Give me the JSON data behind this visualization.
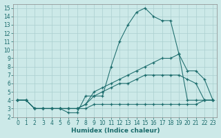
{
  "xlabel": "Humidex (Indice chaleur)",
  "xlim": [
    -0.5,
    23.5
  ],
  "ylim": [
    2,
    15.5
  ],
  "yticks": [
    2,
    3,
    4,
    5,
    6,
    7,
    8,
    9,
    10,
    11,
    12,
    13,
    14,
    15
  ],
  "xticks": [
    0,
    1,
    2,
    3,
    4,
    5,
    6,
    7,
    8,
    9,
    10,
    11,
    12,
    13,
    14,
    15,
    16,
    17,
    18,
    19,
    20,
    21,
    22,
    23
  ],
  "bg_color": "#cce9e8",
  "line_color": "#1a6b6b",
  "grid_color": "#aacfcf",
  "lines": [
    {
      "x": [
        0,
        1,
        2,
        3,
        4,
        5,
        6,
        7,
        8,
        9,
        10,
        11,
        12,
        13,
        14,
        15,
        16,
        17,
        18,
        19,
        20,
        21,
        22,
        23
      ],
      "y": [
        4,
        4,
        3,
        3,
        3,
        3,
        2.5,
        2.5,
        4.5,
        4.5,
        4.5,
        8,
        11,
        13,
        14.5,
        15,
        14,
        13.5,
        13.5,
        9.5,
        4,
        4,
        4,
        4
      ]
    },
    {
      "x": [
        0,
        1,
        2,
        3,
        4,
        5,
        6,
        7,
        8,
        9,
        10,
        11,
        12,
        13,
        14,
        15,
        16,
        17,
        18,
        19,
        20,
        21,
        22,
        23
      ],
      "y": [
        4,
        4,
        3,
        3,
        3,
        3,
        3,
        3,
        3.5,
        5,
        5.5,
        6,
        6.5,
        7,
        7.5,
        8,
        8.5,
        9,
        9,
        9.5,
        7.5,
        7.5,
        6.5,
        4
      ]
    },
    {
      "x": [
        0,
        1,
        2,
        3,
        4,
        5,
        6,
        7,
        8,
        9,
        10,
        11,
        12,
        13,
        14,
        15,
        16,
        17,
        18,
        19,
        20,
        21,
        22,
        23
      ],
      "y": [
        4,
        4,
        3,
        3,
        3,
        3,
        3,
        3,
        3.5,
        4.5,
        5,
        5.5,
        6,
        6,
        6.5,
        7,
        7,
        7,
        7,
        7,
        6.5,
        6,
        4,
        4
      ]
    },
    {
      "x": [
        0,
        1,
        2,
        3,
        4,
        5,
        6,
        7,
        8,
        9,
        10,
        11,
        12,
        13,
        14,
        15,
        16,
        17,
        18,
        19,
        20,
        21,
        22,
        23
      ],
      "y": [
        4,
        4,
        3,
        3,
        3,
        3,
        3,
        3,
        3,
        3.5,
        3.5,
        3.5,
        3.5,
        3.5,
        3.5,
        3.5,
        3.5,
        3.5,
        3.5,
        3.5,
        3.5,
        3.5,
        4,
        4
      ]
    }
  ]
}
